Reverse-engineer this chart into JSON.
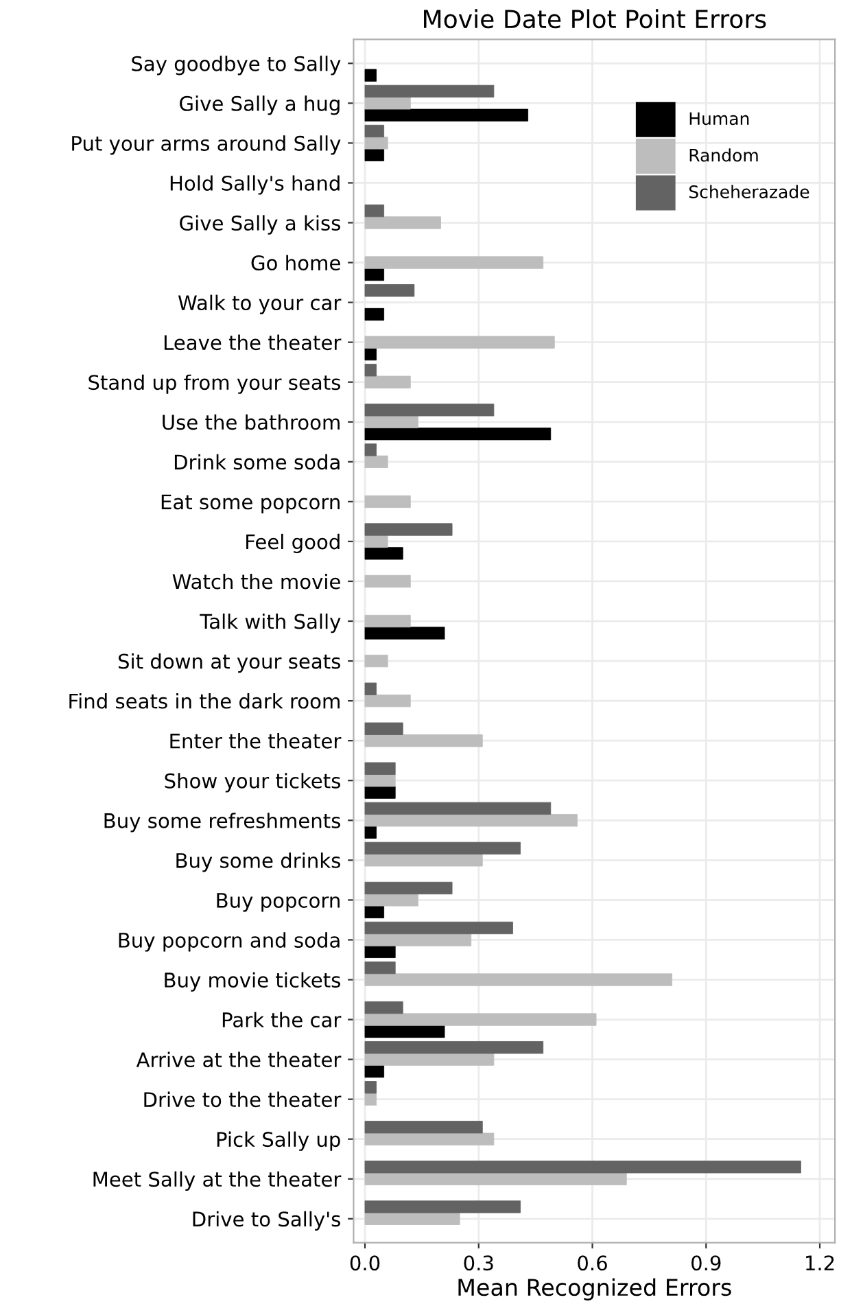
{
  "chart_data": {
    "type": "bar",
    "orientation": "horizontal",
    "title": "Movie Date Plot Point Errors",
    "xlabel": "Mean Recognized Errors",
    "categories": [
      "Say goodbye to Sally",
      "Give Sally a hug",
      "Put your arms around Sally",
      "Hold Sally's hand",
      "Give Sally a kiss",
      "Go home",
      "Walk to your car",
      "Leave the theater",
      "Stand up from your seats",
      "Use the bathroom",
      "Drink some soda",
      "Eat some popcorn",
      "Feel good",
      "Watch the movie",
      "Talk with Sally",
      "Sit down at your seats",
      "Find seats in the dark room",
      "Enter the theater",
      "Show your tickets",
      "Buy some refreshments",
      "Buy some drinks",
      "Buy popcorn",
      "Buy popcorn and soda",
      "Buy movie tickets",
      "Park the car",
      "Arrive at the theater",
      "Drive to the theater",
      "Pick Sally up",
      "Meet Sally at the theater",
      "Drive to Sally's"
    ],
    "series": [
      {
        "name": "Human",
        "color": "#000000",
        "values": [
          0.03,
          0.43,
          0.05,
          null,
          null,
          0.05,
          0.05,
          0.03,
          null,
          0.49,
          null,
          null,
          0.1,
          null,
          0.21,
          null,
          null,
          null,
          0.08,
          0.03,
          null,
          0.05,
          0.08,
          null,
          0.21,
          0.05,
          null,
          null,
          null,
          null
        ]
      },
      {
        "name": "Random",
        "color": "#bdbdbd",
        "values": [
          null,
          0.12,
          0.06,
          null,
          0.2,
          0.47,
          null,
          0.5,
          0.12,
          0.14,
          0.06,
          0.12,
          0.06,
          0.12,
          0.12,
          0.06,
          0.12,
          0.31,
          0.08,
          0.56,
          0.31,
          0.14,
          0.28,
          0.81,
          0.61,
          0.34,
          0.03,
          0.34,
          0.69,
          0.25
        ]
      },
      {
        "name": "Scheherazade",
        "color": "#636363",
        "values": [
          null,
          0.34,
          0.05,
          null,
          0.05,
          null,
          0.13,
          null,
          0.03,
          0.34,
          0.03,
          null,
          0.23,
          null,
          null,
          null,
          0.03,
          0.1,
          0.08,
          0.49,
          0.41,
          0.23,
          0.39,
          0.08,
          0.1,
          0.47,
          0.03,
          0.31,
          1.15,
          0.41
        ]
      }
    ],
    "xlim": [
      -0.03,
      1.24
    ],
    "xticks": [
      {
        "value": 0,
        "label": "0.0"
      },
      0.3,
      0.6,
      0.9,
      1.2
    ],
    "grid": true,
    "legend": "top right"
  }
}
